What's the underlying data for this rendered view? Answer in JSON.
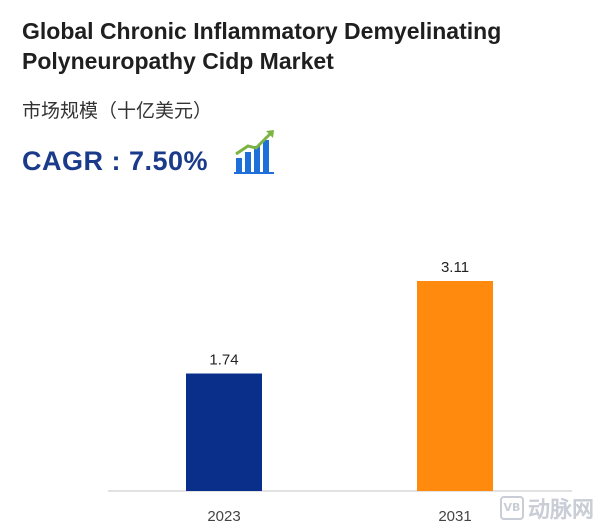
{
  "header": {
    "title": "Global Chronic Inflammatory Demyelinating Polyneuropathy Cidp Market",
    "subtitle": "市场规模（十亿美元）",
    "cagr": "CAGR : 7.50%"
  },
  "watermark": {
    "badge": "VB",
    "text": "动脉网"
  },
  "colors": {
    "bar_2023": "#0a2f8a",
    "bar_2031": "#ff8a0d",
    "accent": "#1a3a8a",
    "icon_green": "#7cb342",
    "icon_blue": "#1e6fd9"
  },
  "icons": {
    "growth": "bar-chart-growth-icon"
  },
  "chart_data": {
    "type": "bar",
    "title": "Global Chronic Inflammatory Demyelinating Polyneuropathy Cidp Market",
    "ylabel": "市场规模（十亿美元）",
    "xlabel": "",
    "categories": [
      "2023",
      "2031"
    ],
    "values": [
      1.74,
      3.11
    ],
    "value_labels": [
      "1.74",
      "3.11"
    ],
    "ylim": [
      0,
      3.11
    ],
    "grid": false,
    "legend": "none"
  }
}
